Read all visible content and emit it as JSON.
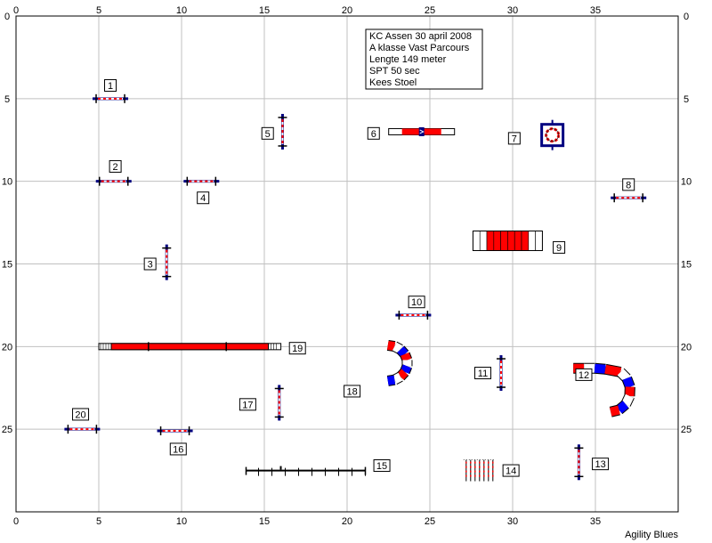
{
  "app_name": "Agility Blues",
  "course": {
    "info_lines": [
      "KC Assen 30 april 2008",
      "A klasse Vast Parcours",
      "Lengte 149 meter",
      "SPT 50 sec",
      "Kees Stoel"
    ],
    "x_range": [
      0,
      40
    ],
    "y_range": [
      0,
      30
    ],
    "x_ticks": [
      0,
      5,
      10,
      15,
      20,
      25,
      30,
      35
    ],
    "y_ticks": [
      0,
      5,
      10,
      15,
      20,
      25
    ],
    "grid": true,
    "colors": {
      "grid": "#c0c0c0",
      "red": "#ff0000",
      "blue": "#0000ff",
      "navy": "#000080",
      "white": "#ffffff",
      "black": "#000000"
    },
    "obstacles": [
      {
        "number": "1",
        "type": "jump-horizontal",
        "x": 5.7,
        "y": 5.0,
        "label_x": 5.7,
        "label_y": 4.2
      },
      {
        "number": "2",
        "type": "jump-horizontal",
        "x": 5.9,
        "y": 10.0,
        "label_x": 6.0,
        "label_y": 9.1
      },
      {
        "number": "3",
        "type": "jump-vertical",
        "x": 9.1,
        "y": 14.9,
        "label_x": 8.1,
        "label_y": 15.0
      },
      {
        "number": "4",
        "type": "jump-horizontal",
        "x": 11.2,
        "y": 10.0,
        "label_x": 11.3,
        "label_y": 11.0
      },
      {
        "number": "5",
        "type": "jump-vertical",
        "x": 16.1,
        "y": 7.0,
        "label_x": 15.2,
        "label_y": 7.1
      },
      {
        "number": "6",
        "type": "seesaw",
        "x": 24.5,
        "y": 7.0,
        "label_x": 21.6,
        "label_y": 7.1
      },
      {
        "number": "7",
        "type": "tire",
        "x": 32.4,
        "y": 7.2,
        "label_x": 30.1,
        "label_y": 7.4
      },
      {
        "number": "8",
        "type": "jump-horizontal",
        "x": 37.0,
        "y": 11.0,
        "label_x": 37.0,
        "label_y": 10.2
      },
      {
        "number": "9",
        "type": "tunnel",
        "x": 29.7,
        "y": 13.6,
        "label_x": 32.8,
        "label_y": 14.0
      },
      {
        "number": "10",
        "type": "jump-horizontal",
        "x": 24.0,
        "y": 18.1,
        "label_x": 24.2,
        "label_y": 17.3
      },
      {
        "number": "11",
        "type": "jump-vertical",
        "x": 29.3,
        "y": 21.6,
        "label_x": 28.2,
        "label_y": 21.6
      },
      {
        "number": "12",
        "type": "tunnel-curved-right",
        "x": 37.0,
        "y": 22.5,
        "label_x": 34.3,
        "label_y": 21.7
      },
      {
        "number": "13",
        "type": "jump-vertical",
        "x": 34.0,
        "y": 27.0,
        "label_x": 35.3,
        "label_y": 27.1
      },
      {
        "number": "14",
        "type": "weave",
        "x": 28.0,
        "y": 27.5,
        "label_x": 29.9,
        "label_y": 27.5
      },
      {
        "number": "15",
        "type": "table-rail",
        "x": 17.5,
        "y": 27.5,
        "label_x": 22.1,
        "label_y": 27.2
      },
      {
        "number": "16",
        "type": "jump-horizontal",
        "x": 9.6,
        "y": 25.1,
        "label_x": 9.8,
        "label_y": 26.2
      },
      {
        "number": "17",
        "type": "jump-vertical",
        "x": 15.9,
        "y": 23.4,
        "label_x": 14.0,
        "label_y": 23.5
      },
      {
        "number": "18",
        "type": "tunnel-curved-left",
        "x": 23.0,
        "y": 21.0,
        "label_x": 20.3,
        "label_y": 22.7
      },
      {
        "number": "19",
        "type": "dogwalk",
        "x": 10.5,
        "y": 20.0,
        "label_x": 17.0,
        "label_y": 20.1
      },
      {
        "number": "20",
        "type": "jump-horizontal",
        "x": 4.0,
        "y": 25.0,
        "label_x": 3.9,
        "label_y": 24.1
      }
    ]
  }
}
